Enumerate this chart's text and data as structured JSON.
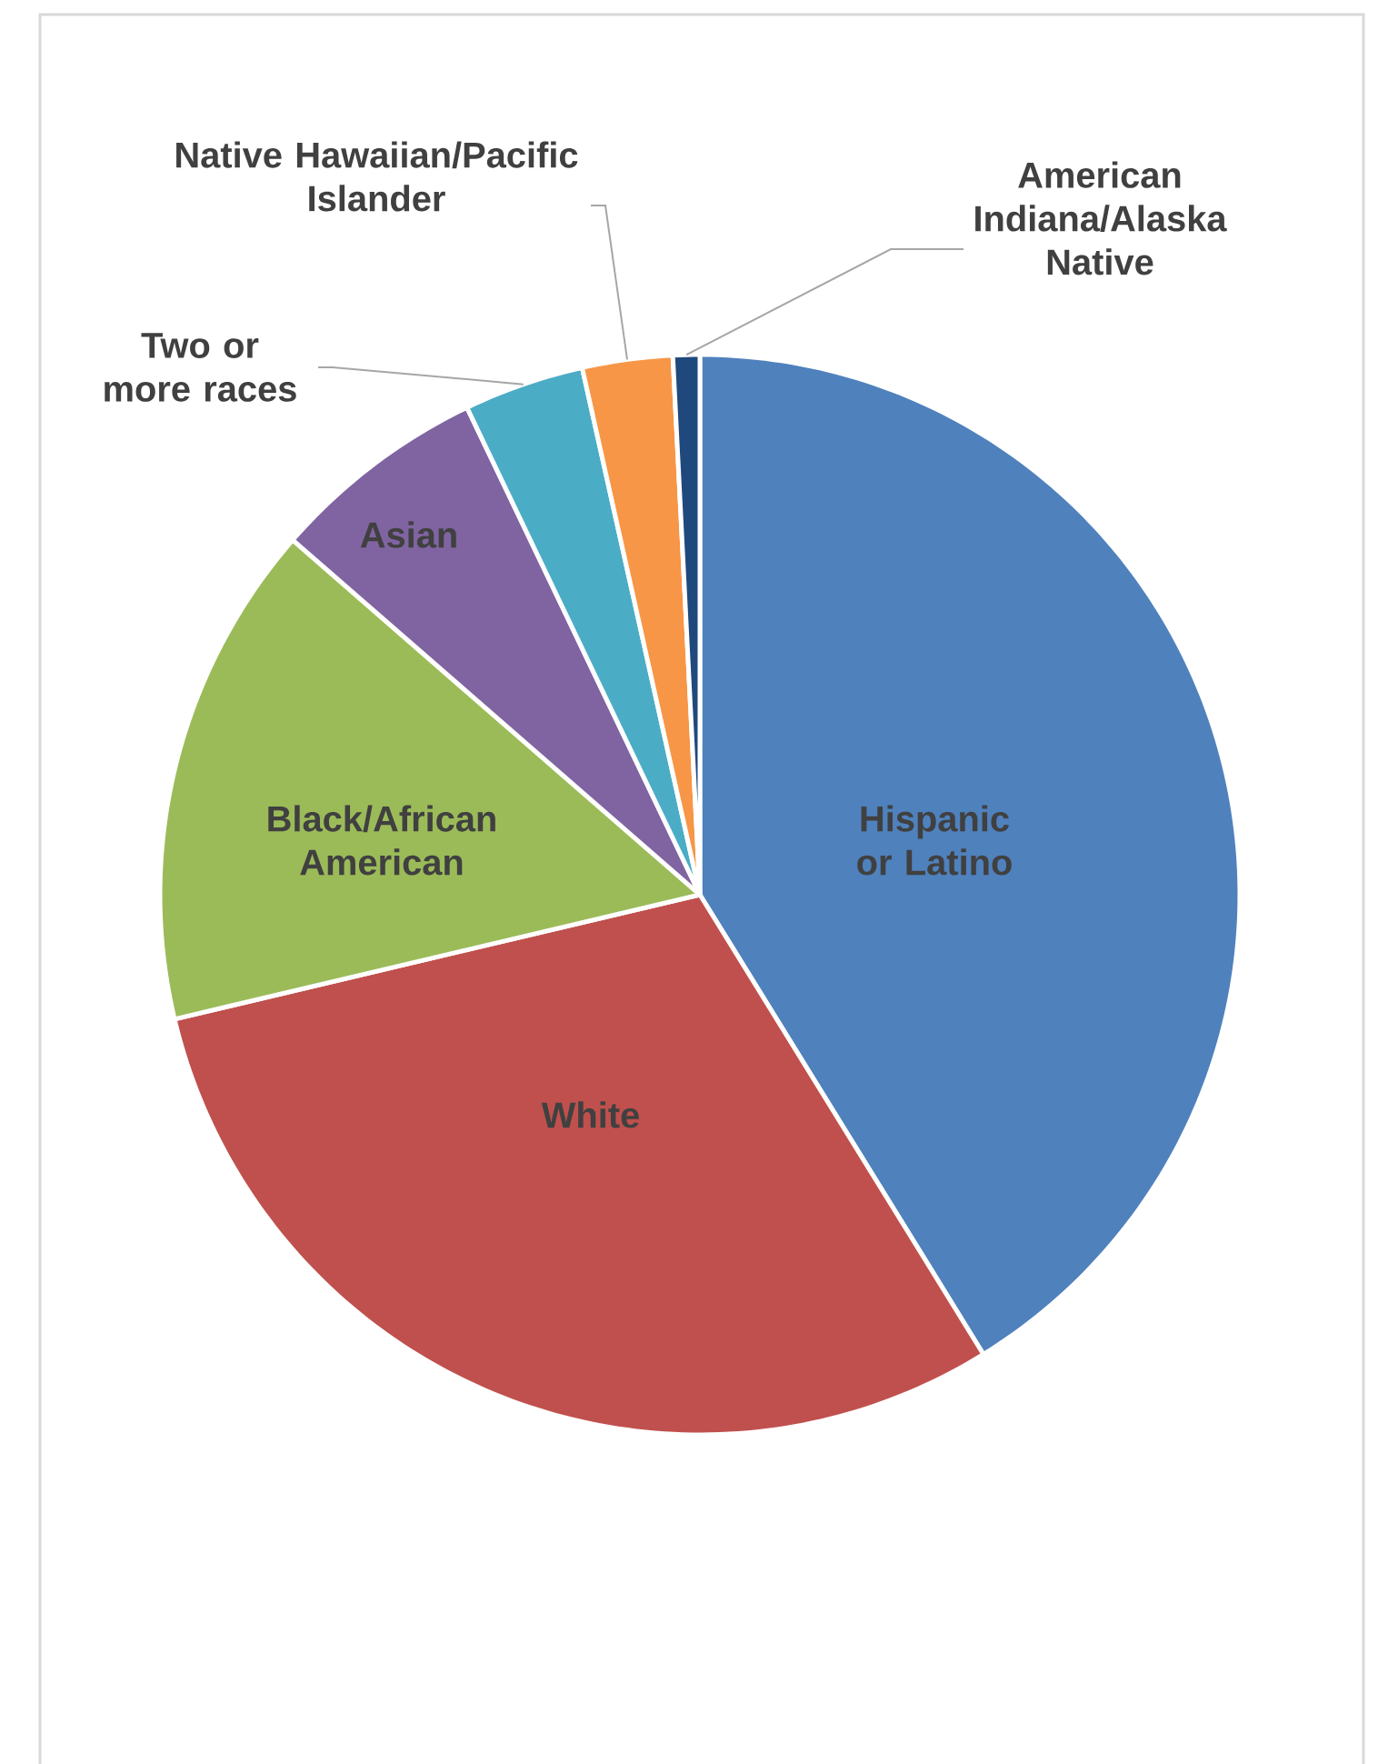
{
  "chart_data": {
    "type": "pie",
    "categories": [
      "Hispanic or Latino",
      "White",
      "Black/African American",
      "Asian",
      "Two or more races",
      "Native Hawaiian/Pacific Islander",
      "American Indiana/Alaska Native"
    ],
    "values": [
      41.2,
      30.1,
      15.1,
      6.5,
      3.6,
      2.7,
      0.8
    ],
    "colors": [
      "#4f81bd",
      "#c0504d",
      "#9bbb59",
      "#8064a2",
      "#4bacc6",
      "#f79646",
      "#1f497d"
    ]
  }
}
